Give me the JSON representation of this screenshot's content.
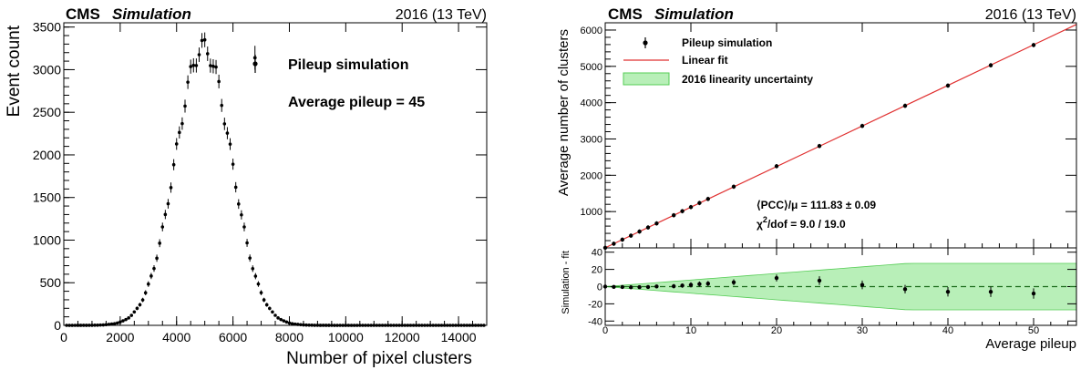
{
  "chart_data": [
    {
      "type": "scatter",
      "header": {
        "experiment": "CMS",
        "status": "Simulation",
        "energy": "2016 (13 TeV)"
      },
      "xlabel": "Number of pixel clusters",
      "ylabel": "Event count",
      "xlim": [
        0,
        15000
      ],
      "ylim": [
        0,
        3550
      ],
      "xticks": [
        0,
        2000,
        4000,
        6000,
        8000,
        10000,
        12000,
        14000
      ],
      "yticks": [
        0,
        500,
        1000,
        1500,
        2000,
        2500,
        3000,
        3500
      ],
      "legend": {
        "entry": "Pileup simulation",
        "annotation": "Average pileup = 45",
        "placement": "top-right"
      },
      "series": [
        {
          "name": "Pileup simulation",
          "distribution": {
            "kind": "gaussian",
            "mean": 4950,
            "sigma": 990,
            "peak": 3260,
            "bin_width": 100,
            "x_min": 100,
            "x_max": 14900
          },
          "outliers": [
            {
              "x": 6780,
              "y": 3140,
              "err": 140
            }
          ]
        }
      ]
    },
    {
      "type": "line",
      "header": {
        "experiment": "CMS",
        "status": "Simulation",
        "energy": "2016 (13 TeV)"
      },
      "xlabel": "Average pileup",
      "ylabel": "Average number of clusters",
      "ratio_ylabel": "Simulation - fit",
      "xlim": [
        0,
        55
      ],
      "ylim": [
        0,
        6200
      ],
      "ratio_ylim": [
        -45,
        45
      ],
      "xticks": [
        0,
        10,
        20,
        30,
        40,
        50
      ],
      "yticks": [
        1000,
        2000,
        3000,
        4000,
        5000,
        6000
      ],
      "ratio_yticks": [
        -40,
        -20,
        0,
        20,
        40
      ],
      "legend": {
        "placement": "top-left",
        "entries": [
          "Pileup simulation",
          "Linear fit",
          "2016 linearity uncertainty"
        ]
      },
      "annotations": {
        "pcc": "⟨PCC⟩/μ = 111.83 ± 0.09",
        "chi2_prefix": "χ",
        "chi2_sup": "2",
        "chi2_rest": "/dof = 9.0 / 19.0"
      },
      "fit": {
        "slope": 111.83,
        "intercept": 3
      },
      "uncertainty_band": {
        "relative": 0.0114
      },
      "series": [
        {
          "name": "Pileup simulation",
          "x": [
            0,
            1,
            2,
            3,
            4,
            5,
            6,
            8,
            9,
            10,
            11,
            12,
            15,
            20,
            25,
            30,
            35,
            40,
            45,
            50
          ],
          "residual": [
            0,
            -0.3,
            -0.5,
            -0.8,
            -0.6,
            -0.5,
            0.2,
            0.5,
            1.2,
            2,
            3,
            3.5,
            5,
            10,
            7,
            2,
            -3,
            -6,
            -6,
            -8
          ],
          "residual_err": [
            1,
            1,
            1.5,
            1.5,
            2,
            2,
            2,
            2.5,
            2.5,
            3,
            3,
            3,
            3.5,
            4,
            5,
            5,
            5,
            5.5,
            6,
            6
          ]
        }
      ]
    }
  ],
  "colors": {
    "fit_line": "#e03030",
    "band_fill": "#b8efb8",
    "band_edge": "#55cc55",
    "markers": "#000000"
  }
}
